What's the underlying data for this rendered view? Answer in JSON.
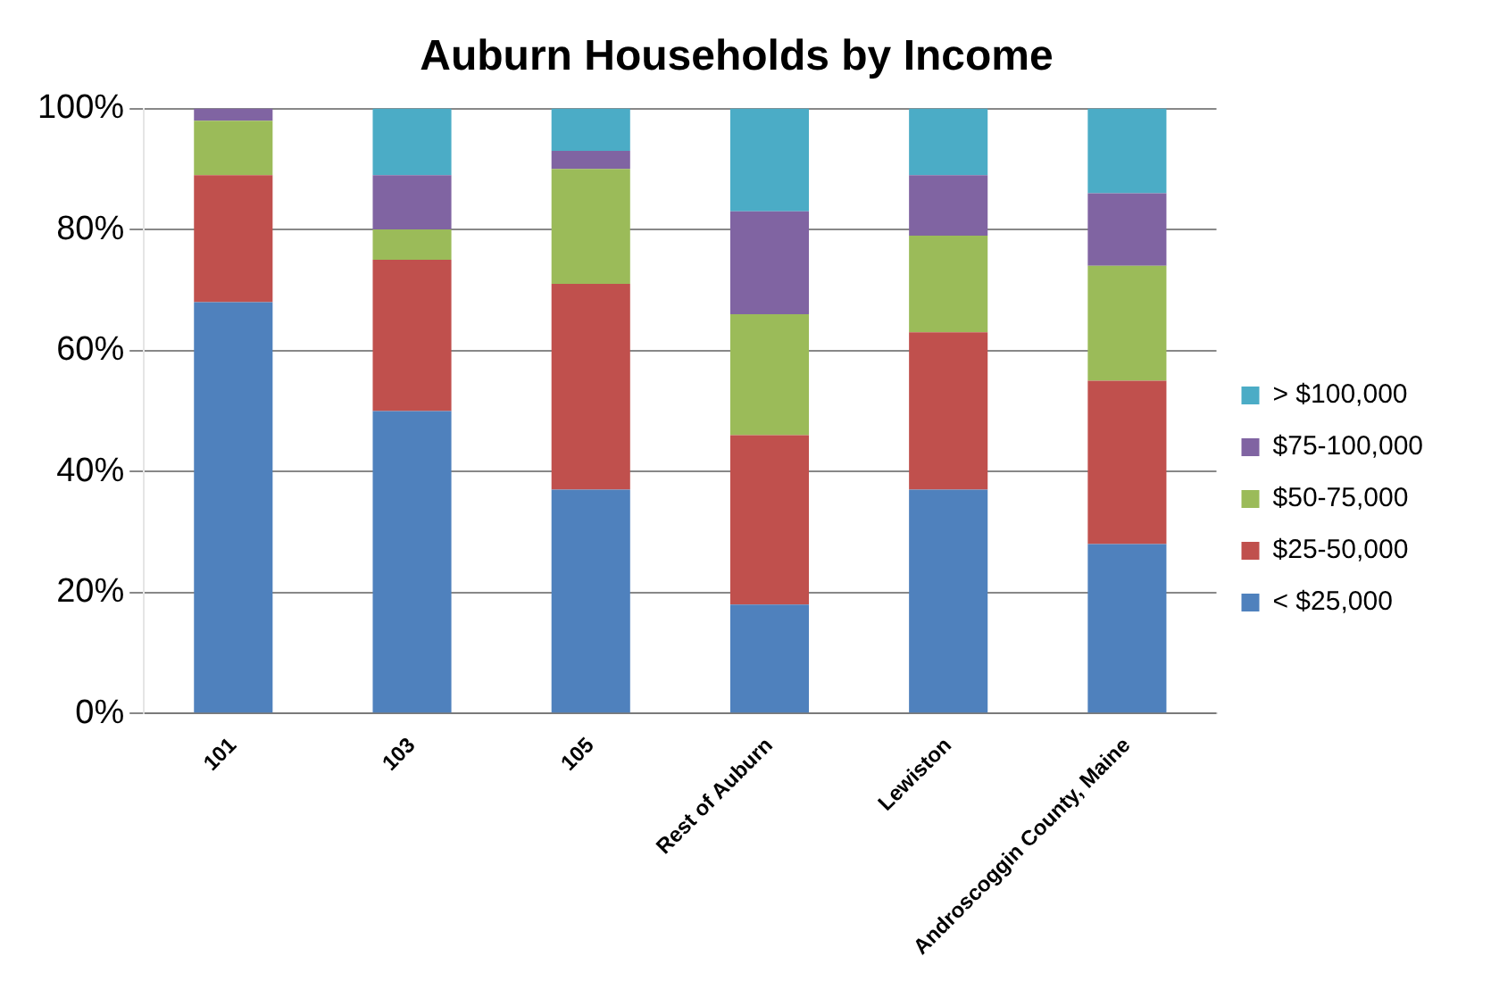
{
  "chart_data": {
    "type": "bar",
    "title": "Auburn Households by Income",
    "stacked": true,
    "categories": [
      "101",
      "103",
      "105",
      "Rest of Auburn",
      "Lewiston",
      "Androscoggin County, Maine"
    ],
    "series": [
      {
        "name": "< $25,000",
        "color": "#4f81bd",
        "values": [
          68,
          50,
          37,
          18,
          37,
          28
        ]
      },
      {
        "name": "$25-50,000",
        "color": "#c0504d",
        "values": [
          21,
          25,
          34,
          28,
          26,
          27
        ]
      },
      {
        "name": "$50-75,000",
        "color": "#9bbb59",
        "values": [
          9,
          5,
          19,
          20,
          16,
          19
        ]
      },
      {
        "name": "$75-100,000",
        "color": "#8064a2",
        "values": [
          2,
          9,
          3,
          17,
          10,
          12
        ]
      },
      {
        "name": "> $100,000",
        "color": "#4bacc6",
        "values": [
          0,
          11,
          7,
          17,
          11,
          14
        ]
      }
    ],
    "ylim": [
      0,
      100
    ],
    "yticks": [
      {
        "value": 0,
        "label": "0%"
      },
      {
        "value": 20,
        "label": "20%"
      },
      {
        "value": 40,
        "label": "40%"
      },
      {
        "value": 60,
        "label": "60%"
      },
      {
        "value": 80,
        "label": "80%"
      },
      {
        "value": 100,
        "label": "100%"
      }
    ],
    "grid": "y",
    "legend": "right"
  }
}
